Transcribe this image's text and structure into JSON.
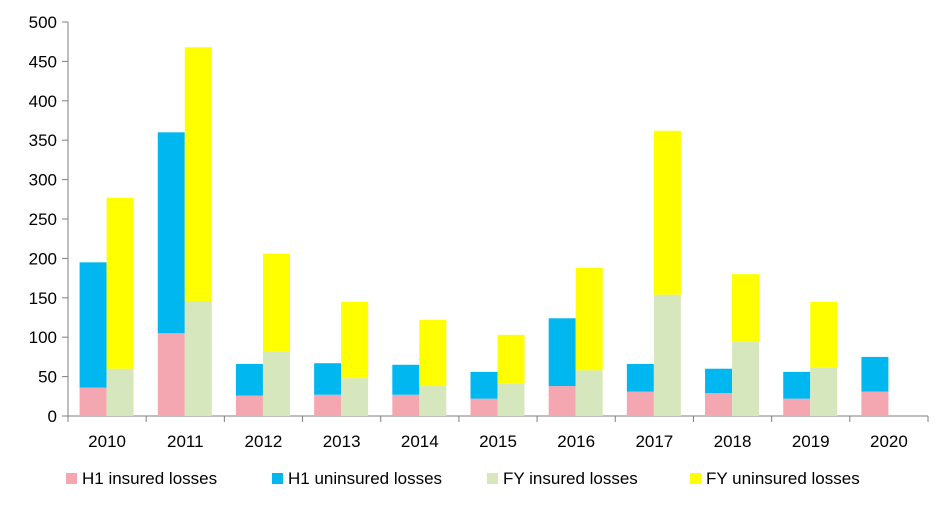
{
  "chart_data": {
    "type": "bar",
    "stacked": true,
    "grouped": true,
    "categories": [
      "2010",
      "2011",
      "2012",
      "2013",
      "2014",
      "2015",
      "2016",
      "2017",
      "2018",
      "2019",
      "2020"
    ],
    "ylim": [
      0,
      500
    ],
    "yticks": [
      "0",
      "50",
      "100",
      "150",
      "200",
      "250",
      "300",
      "350",
      "400",
      "450",
      "500"
    ],
    "grid": false,
    "legend_position": "bottom",
    "groups": [
      {
        "stack": "H1",
        "series": [
          {
            "name": "H1 insured losses",
            "color": "#f4a7b0",
            "values": [
              36,
              105,
              26,
              27,
              27,
              22,
              38,
              31,
              29,
              22,
              31
            ]
          },
          {
            "name": "H1 uninsured losses",
            "color": "#00b7ef",
            "values": [
              159,
              255,
              40,
              40,
              38,
              34,
              86,
              35,
              31,
              34,
              44
            ]
          }
        ]
      },
      {
        "stack": "FY",
        "series": [
          {
            "name": "FY insured losses",
            "color": "#d6e7bd",
            "values": [
              60,
              146,
              82,
              48,
              38,
              41,
              58,
              154,
              94,
              61,
              null
            ]
          },
          {
            "name": "FY uninsured losses",
            "color": "#ffff00",
            "values": [
              217,
              322,
              124,
              97,
              84,
              62,
              130,
              208,
              86,
              84,
              null
            ]
          }
        ]
      }
    ]
  }
}
